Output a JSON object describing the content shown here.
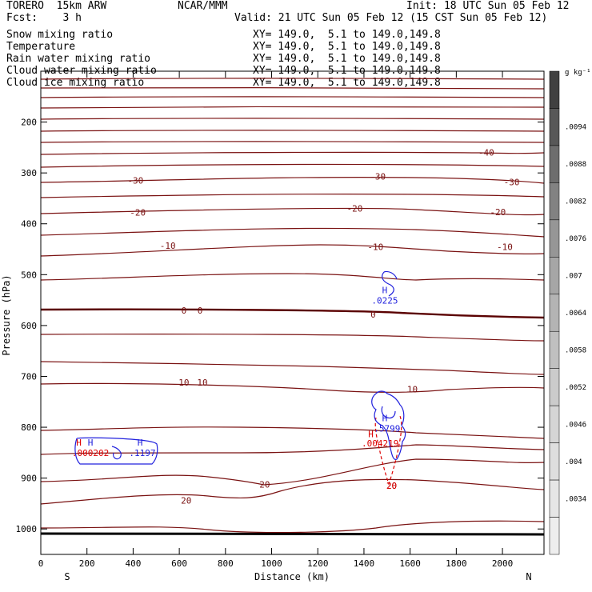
{
  "header": {
    "model": "TORERO  15km ARW",
    "org": "NCAR/MMM",
    "init": "Init: 18 UTC Sun 05 Feb 12",
    "fcst": "Fcst:    3 h",
    "valid": "Valid: 21 UTC Sun 05 Feb 12 (15 CST Sun 05 Feb 12)"
  },
  "fields": [
    {
      "name": "Snow mixing ratio",
      "xy": "XY= 149.0,  5.1 to 149.0,149.8",
      "color": "#000000"
    },
    {
      "name": "Temperature",
      "xy": "XY= 149.0,  5.1 to 149.0,149.8",
      "color": "#cc0000"
    },
    {
      "name": "Rain water mixing ratio",
      "xy": "XY= 149.0,  5.1 to 149.0,149.8",
      "color": "#cc0000"
    },
    {
      "name": "Cloud water mixing ratio",
      "xy": "XY= 149.0,  5.1 to 149.0,149.8",
      "color": "#0000cc"
    },
    {
      "name": "Cloud ice mixing ratio",
      "xy": "XY= 149.0,  5.1 to 149.0,149.8",
      "color": "#000000"
    }
  ],
  "chart_data": {
    "type": "contour",
    "ylabel": "Pressure (hPa)",
    "xlabel": "Distance (km)",
    "x_ticks": [
      0,
      200,
      400,
      600,
      800,
      1000,
      1200,
      1400,
      1600,
      1800,
      2000
    ],
    "y_ticks": [
      200,
      300,
      400,
      500,
      600,
      700,
      800,
      900,
      1000
    ],
    "xlim": [
      0,
      2180
    ],
    "ylim": [
      1050,
      100
    ],
    "left_end_label": "S",
    "right_end_label": "N",
    "colorbar": {
      "unit": "g kg⁻¹",
      "labels": [
        ".0094",
        ".0088",
        ".0082",
        ".0076",
        ".007",
        ".0064",
        ".0058",
        ".0052",
        ".0046",
        ".004",
        ".0034"
      ],
      "shades": [
        "#404040",
        "#585858",
        "#6e6e6e",
        "#828282",
        "#969696",
        "#a6a6a6",
        "#b4b4b4",
        "#c0c0c0",
        "#cbcbcb",
        "#d5d5d5",
        "#dedede",
        "#e6e6e6",
        "#eeeeee"
      ]
    },
    "temperature_labels": [
      {
        "text": "-40",
        "x": 1930,
        "p": 260
      },
      {
        "text": "-30",
        "x": 410,
        "p": 315
      },
      {
        "text": "-30",
        "x": 1460,
        "p": 307
      },
      {
        "text": "-30",
        "x": 2040,
        "p": 318
      },
      {
        "text": "-20",
        "x": 420,
        "p": 378
      },
      {
        "text": "-20",
        "x": 1360,
        "p": 370
      },
      {
        "text": "-20",
        "x": 1980,
        "p": 377
      },
      {
        "text": "-10",
        "x": 550,
        "p": 443
      },
      {
        "text": "-10",
        "x": 1450,
        "p": 445
      },
      {
        "text": "-10",
        "x": 2010,
        "p": 445
      },
      {
        "text": "0",
        "x": 620,
        "p": 570
      },
      {
        "text": "0",
        "x": 690,
        "p": 570
      },
      {
        "text": "0",
        "x": 1440,
        "p": 578
      },
      {
        "text": "10",
        "x": 620,
        "p": 712
      },
      {
        "text": "10",
        "x": 700,
        "p": 712
      },
      {
        "text": "10",
        "x": 1610,
        "p": 725
      },
      {
        "text": "20",
        "x": 630,
        "p": 944
      },
      {
        "text": "20",
        "x": 970,
        "p": 912
      },
      {
        "text": "20",
        "x": 1520,
        "p": 915
      }
    ],
    "rain_labels": [
      {
        "text": "H",
        "x": 165,
        "p": 830
      },
      {
        "text": ".000202",
        "x": 215,
        "p": 850
      },
      {
        "text": "H",
        "x": 1430,
        "p": 813
      },
      {
        "text": ".004219",
        "x": 1470,
        "p": 831
      },
      {
        "text": "20",
        "x": 1520,
        "p": 915
      }
    ],
    "cloud_labels": [
      {
        "text": "H",
        "x": 215,
        "p": 830
      },
      {
        "text": "H",
        "x": 430,
        "p": 830
      },
      {
        "text": ".1197",
        "x": 440,
        "p": 850
      },
      {
        "text": "H",
        "x": 1490,
        "p": 530
      },
      {
        "text": ".0225",
        "x": 1490,
        "p": 551
      },
      {
        "text": "H",
        "x": 1490,
        "p": 782
      },
      {
        "text": ".5799",
        "x": 1500,
        "p": 802
      }
    ]
  }
}
